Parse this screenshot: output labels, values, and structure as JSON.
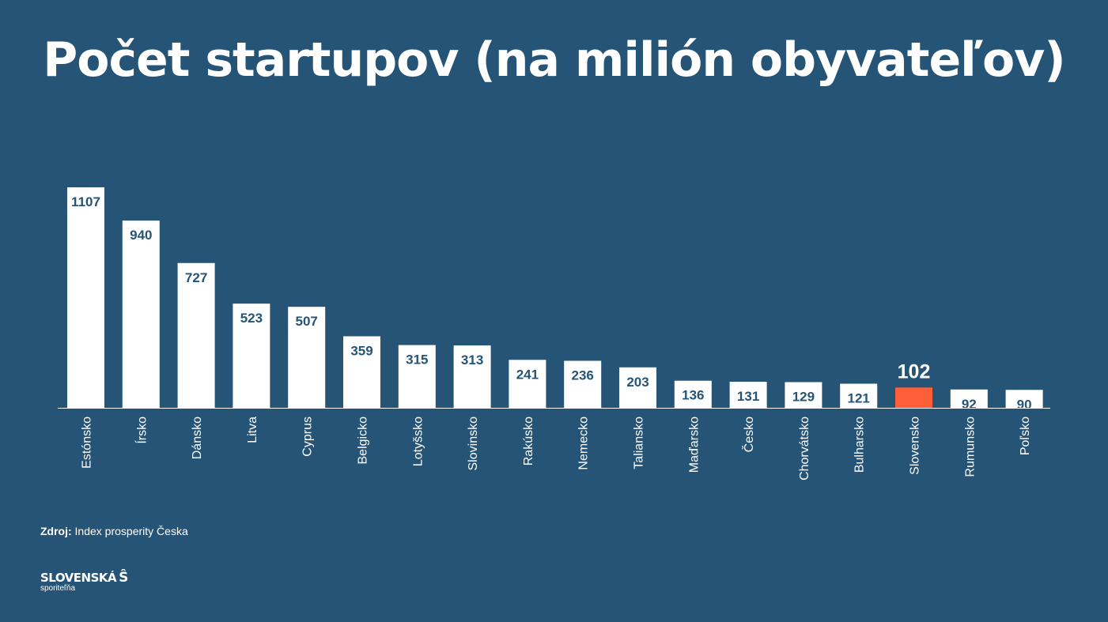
{
  "title": "Počet startupov (na milión obyvateľov)",
  "source": {
    "label": "Zdroj:",
    "text": "Index prosperity Česka"
  },
  "logo": {
    "name": "SLOVENSKÁ",
    "sub": "sporiteľňa",
    "mark": "Ŝ"
  },
  "colors": {
    "background": "#255476",
    "bar": "#ffffff",
    "highlight": "#ff5f38",
    "value_label": "#255476"
  },
  "chart_data": {
    "type": "bar",
    "title": "Počet startupov (na milión obyvateľov)",
    "categories": [
      "Estónsko",
      "Írsko",
      "Dánsko",
      "Litva",
      "Cyprus",
      "Belgicko",
      "Lotyšsko",
      "Slovinsko",
      "Rakúsko",
      "Nemecko",
      "Taliansko",
      "Maďarsko",
      "Česko",
      "Chorvátsko",
      "Bulharsko",
      "Slovensko",
      "Rumunsko",
      "Poľsko"
    ],
    "values": [
      1107,
      940,
      727,
      523,
      507,
      359,
      315,
      313,
      241,
      236,
      203,
      136,
      131,
      129,
      121,
      102,
      92,
      90
    ],
    "labels": [
      "1107",
      "940",
      "727",
      "523",
      "507",
      "359",
      "315",
      "313",
      "241",
      "236",
      "203",
      "136",
      "131",
      "129",
      "121",
      "102",
      "92",
      "90"
    ],
    "highlight": "Slovensko",
    "xlabel": "",
    "ylabel": "",
    "ylim": [
      0,
      1107
    ],
    "grid": false,
    "legend": "none"
  }
}
